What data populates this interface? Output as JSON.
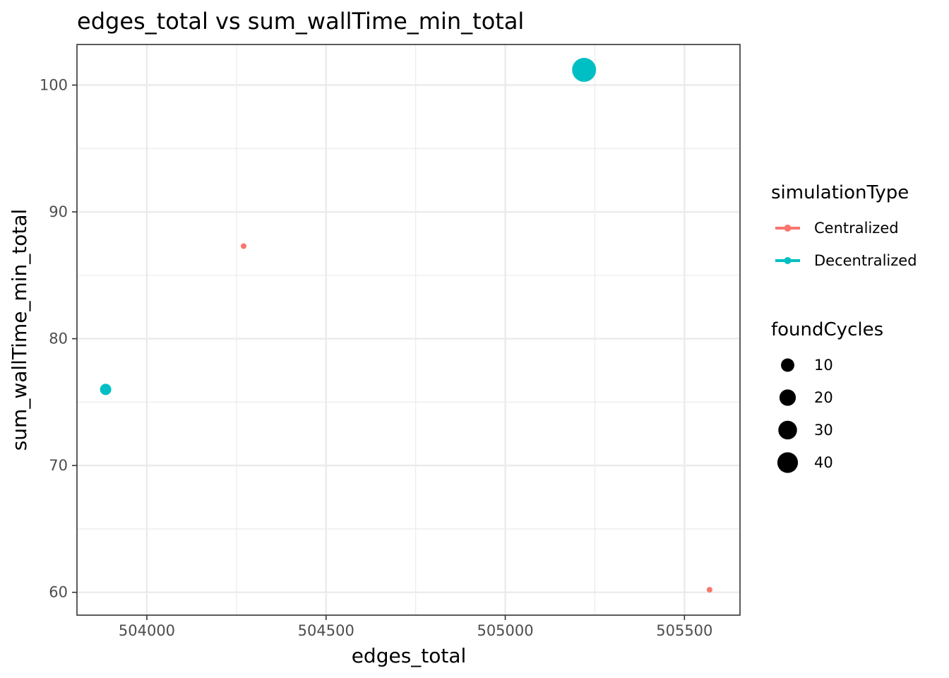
{
  "chart_data": {
    "type": "scatter",
    "title": "edges_total  vs  sum_wallTime_min_total",
    "xlabel": "edges_total",
    "ylabel": "sum_wallTime_min_total",
    "xlim": [
      503805,
      505655
    ],
    "ylim": [
      58.2,
      103.2
    ],
    "x_ticks": [
      504000,
      504500,
      505000,
      505500
    ],
    "y_ticks": [
      60,
      70,
      80,
      90,
      100
    ],
    "x_tick_labels": [
      "504000",
      "504500",
      "505000",
      "505500"
    ],
    "y_tick_labels": [
      "60",
      "70",
      "80",
      "90",
      "100"
    ],
    "grid": true,
    "legend_position": "right",
    "color_legend": {
      "title": "simulationType",
      "entries": [
        {
          "label": "Centralized",
          "color": "#F8766D"
        },
        {
          "label": "Decentralized",
          "color": "#00BFC4"
        }
      ]
    },
    "size_legend": {
      "title": "foundCycles",
      "values": [
        10,
        20,
        30,
        40
      ],
      "labels": [
        "10",
        "20",
        "30",
        "40"
      ]
    },
    "series": [
      {
        "name": "Centralized",
        "color": "#F8766D",
        "points": [
          {
            "x": 504270,
            "y": 87.3,
            "size": 1
          },
          {
            "x": 505570,
            "y": 60.2,
            "size": 1
          }
        ]
      },
      {
        "name": "Decentralized",
        "color": "#00BFC4",
        "points": [
          {
            "x": 503885,
            "y": 76.0,
            "size": 5
          },
          {
            "x": 505220,
            "y": 101.2,
            "size": 44
          }
        ]
      }
    ]
  }
}
